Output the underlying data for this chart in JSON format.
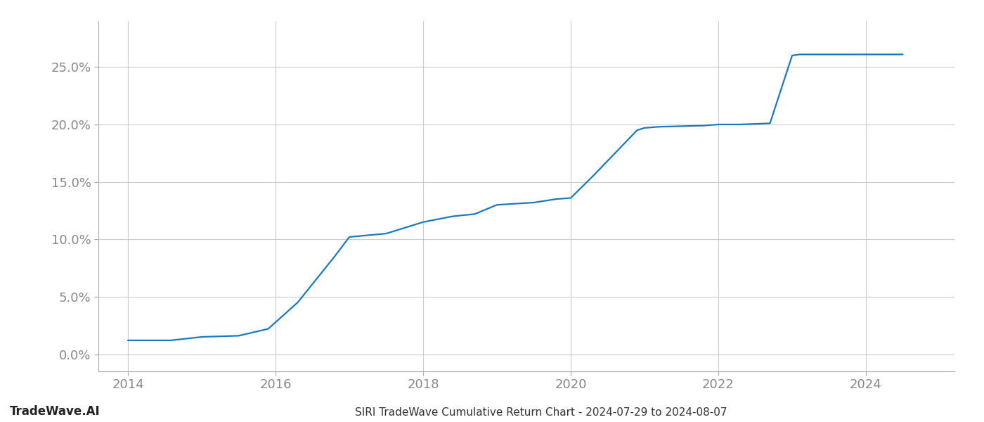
{
  "title": "SIRI TradeWave Cumulative Return Chart - 2024-07-29 to 2024-08-07",
  "watermark": "TradeWave.AI",
  "line_color": "#1a7abf",
  "background_color": "#ffffff",
  "grid_color": "#cccccc",
  "x_values": [
    2014.0,
    2014.58,
    2015.0,
    2015.5,
    2015.9,
    2016.3,
    2016.8,
    2017.0,
    2017.5,
    2018.0,
    2018.4,
    2018.7,
    2019.0,
    2019.5,
    2019.8,
    2020.0,
    2020.3,
    2020.6,
    2020.9,
    2021.0,
    2021.2,
    2021.5,
    2021.8,
    2022.0,
    2022.3,
    2022.7,
    2023.0,
    2023.1,
    2023.5,
    2023.9,
    2024.0,
    2024.5
  ],
  "y_values": [
    1.2,
    1.2,
    1.5,
    1.6,
    2.2,
    4.5,
    8.5,
    10.2,
    10.5,
    11.5,
    12.0,
    12.2,
    13.0,
    13.2,
    13.5,
    13.6,
    15.5,
    17.5,
    19.5,
    19.7,
    19.8,
    19.85,
    19.9,
    20.0,
    20.0,
    20.1,
    26.0,
    26.1,
    26.1,
    26.1,
    26.1,
    26.1
  ],
  "xlim": [
    2013.6,
    2025.2
  ],
  "ylim": [
    -1.5,
    29.0
  ],
  "xticks": [
    2014,
    2016,
    2018,
    2020,
    2022,
    2024
  ],
  "yticks": [
    0.0,
    5.0,
    10.0,
    15.0,
    20.0,
    25.0
  ],
  "line_width": 1.6,
  "figsize": [
    14.0,
    6.0
  ],
  "dpi": 100,
  "tick_fontsize": 13,
  "label_color": "#888888",
  "spine_color": "#aaaaaa",
  "title_fontsize": 11,
  "watermark_fontsize": 12
}
